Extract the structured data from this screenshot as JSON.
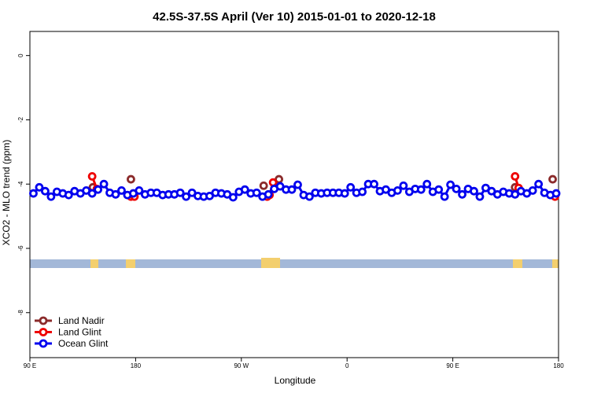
{
  "chart_data": {
    "type": "line",
    "title": "42.5S-37.5S April (Ver 10)   2015-01-01 to 2020-12-18",
    "xlabel": "Longitude",
    "ylabel": "XCO2 - MLO trend (ppm)",
    "xlim": [
      90,
      540
    ],
    "ylim": [
      -9.4,
      0.75
    ],
    "xticks": [
      {
        "value": 90,
        "label": "90 E"
      },
      180,
      {
        "value": 270,
        "label": "90 W"
      },
      {
        "value": 360,
        "label": "0"
      },
      {
        "value": 450,
        "label": "90 E"
      },
      {
        "value": 540,
        "label": "180"
      }
    ],
    "yticks": [
      0,
      -2,
      -4,
      -6,
      -8
    ],
    "legend": "bottom-left",
    "series": [
      {
        "name": "Land Nadir",
        "color": "#8b2b2b",
        "markers_only": true,
        "x": [
          143.6,
          176,
          289,
          302,
          503,
          535
        ],
        "values": [
          -4.1,
          -3.85,
          -4.05,
          -3.85,
          -4.1,
          -3.85
        ]
      },
      {
        "name": "Land Glint",
        "color": "#ee0000",
        "x": [
          143,
          147,
          160,
          176,
          179,
          230,
          292,
          294,
          297,
          400,
          503,
          506,
          520,
          537
        ],
        "values": [
          -3.76,
          -4.15,
          null,
          -4.39,
          -4.39,
          null,
          -4.39,
          -4.34,
          -3.95,
          null,
          -3.76,
          -4.12,
          null,
          -4.39
        ]
      },
      {
        "name": "Ocean Glint",
        "color": "#0000ee",
        "x": [
          93,
          98,
          103,
          108,
          113,
          118,
          123,
          128,
          133,
          138,
          143,
          148,
          153,
          158,
          163,
          168,
          173,
          178,
          183,
          188,
          193,
          198,
          203,
          208,
          213,
          218,
          223,
          228,
          233,
          238,
          243,
          248,
          253,
          258,
          263,
          268,
          273,
          278,
          283,
          288,
          293,
          298,
          303,
          308,
          313,
          318,
          323,
          328,
          333,
          338,
          343,
          348,
          353,
          358,
          363,
          368,
          373,
          378,
          383,
          388,
          393,
          398,
          403,
          408,
          413,
          418,
          423,
          428,
          433,
          438,
          443,
          448,
          453,
          458,
          463,
          468,
          473,
          478,
          483,
          488,
          493,
          498,
          503,
          508,
          513,
          518,
          523,
          528,
          533,
          538
        ],
        "values": [
          -4.29,
          -4.1,
          -4.22,
          -4.39,
          -4.24,
          -4.29,
          -4.34,
          -4.22,
          -4.29,
          -4.2,
          -4.29,
          -4.17,
          -4.0,
          -4.27,
          -4.32,
          -4.2,
          -4.34,
          -4.29,
          -4.2,
          -4.32,
          -4.27,
          -4.27,
          -4.34,
          -4.32,
          -4.32,
          -4.27,
          -4.39,
          -4.27,
          -4.37,
          -4.39,
          -4.37,
          -4.27,
          -4.29,
          -4.32,
          -4.41,
          -4.24,
          -4.17,
          -4.29,
          -4.27,
          -4.39,
          -4.32,
          -4.15,
          -4.07,
          -4.17,
          -4.17,
          -4.02,
          -4.34,
          -4.39,
          -4.27,
          -4.29,
          -4.27,
          -4.27,
          -4.27,
          -4.29,
          -4.1,
          -4.27,
          -4.24,
          -4.0,
          -4.0,
          -4.22,
          -4.17,
          -4.27,
          -4.2,
          -4.05,
          -4.24,
          -4.15,
          -4.17,
          -4.0,
          -4.24,
          -4.17,
          -4.39,
          -4.02,
          -4.15,
          -4.32,
          -4.15,
          -4.22,
          -4.39,
          -4.12,
          -4.22,
          -4.32,
          -4.24,
          -4.29,
          -4.32,
          -4.22,
          -4.29,
          -4.2,
          -4.0,
          -4.27,
          -4.34,
          -4.29
        ]
      }
    ]
  }
}
